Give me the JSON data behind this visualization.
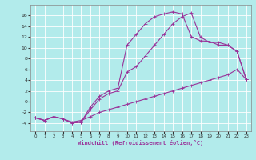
{
  "xlabel": "Windchill (Refroidissement éolien,°C)",
  "background_color": "#b2ebeb",
  "line_color": "#993399",
  "grid_color": "#ffffff",
  "xlim": [
    -0.5,
    23.5
  ],
  "ylim": [
    -5.5,
    18
  ],
  "xticks": [
    0,
    1,
    2,
    3,
    4,
    5,
    6,
    7,
    8,
    9,
    10,
    11,
    12,
    13,
    14,
    15,
    16,
    17,
    18,
    19,
    20,
    21,
    22,
    23
  ],
  "yticks": [
    -4,
    -2,
    0,
    2,
    4,
    6,
    8,
    10,
    12,
    14,
    16
  ],
  "curve1_x": [
    0,
    1,
    2,
    3,
    4,
    5,
    6,
    7,
    8,
    9,
    10,
    11,
    12,
    13,
    14,
    15,
    16,
    17,
    18,
    19,
    20,
    21,
    22,
    23
  ],
  "curve1_y": [
    -3,
    -3.5,
    -2.8,
    -3.2,
    -4,
    -3.8,
    -1,
    1,
    2,
    2.5,
    10.5,
    12.5,
    14.5,
    15.8,
    16.3,
    16.7,
    16.3,
    12.1,
    11.3,
    11.2,
    10.5,
    10.5,
    9.3,
    4.1
  ],
  "curve2_x": [
    0,
    1,
    2,
    3,
    4,
    5,
    6,
    7,
    8,
    9,
    10,
    11,
    12,
    13,
    14,
    15,
    16,
    17,
    18,
    19,
    20,
    21,
    22,
    23
  ],
  "curve2_y": [
    -3,
    -3.5,
    -2.8,
    -3.2,
    -4,
    -3.8,
    -1.5,
    0.5,
    1.5,
    2,
    5.5,
    6.5,
    8.5,
    10.5,
    12.5,
    14.5,
    15.8,
    16.5,
    12,
    11,
    11,
    10.5,
    9.3,
    4.1
  ],
  "curve3_x": [
    0,
    1,
    2,
    3,
    4,
    5,
    6,
    7,
    8,
    9,
    10,
    11,
    12,
    13,
    14,
    15,
    16,
    17,
    18,
    19,
    20,
    21,
    22,
    23
  ],
  "curve3_y": [
    -3,
    -3.5,
    -2.8,
    -3.2,
    -3.8,
    -3.5,
    -2.8,
    -2,
    -1.5,
    -1,
    -0.5,
    0,
    0.5,
    1,
    1.5,
    2,
    2.5,
    3,
    3.5,
    4,
    4.5,
    5,
    6,
    4.1
  ]
}
